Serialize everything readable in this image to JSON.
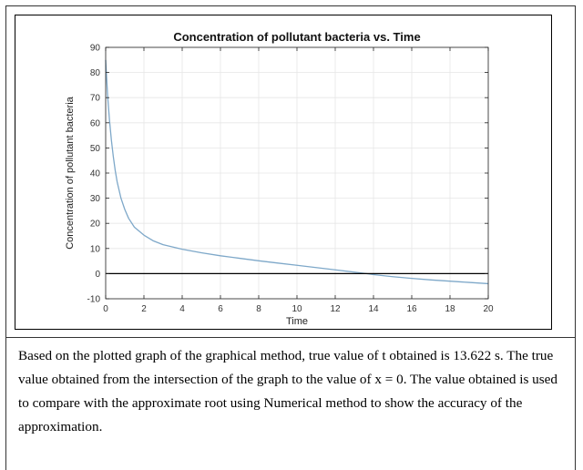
{
  "chart_data": {
    "type": "line",
    "title": "Concentration of pollutant bacteria vs. Time",
    "xlabel": "Time",
    "ylabel": "Concentration of pollutant bacteria",
    "xlim": [
      0,
      20
    ],
    "ylim": [
      -10,
      90
    ],
    "xticks": [
      0,
      2,
      4,
      6,
      8,
      10,
      12,
      14,
      16,
      18,
      20
    ],
    "yticks": [
      -10,
      0,
      10,
      20,
      30,
      40,
      50,
      60,
      70,
      80,
      90
    ],
    "grid": true,
    "series": [
      {
        "name": "concentration",
        "color": "#7ea8c9",
        "x": [
          0,
          0.1,
          0.2,
          0.3,
          0.4,
          0.5,
          0.6,
          0.8,
          1.0,
          1.2,
          1.5,
          2.0,
          2.5,
          3.0,
          4.0,
          5.0,
          6.0,
          7.0,
          8.0,
          9.0,
          10.0,
          11.0,
          12.0,
          13.0,
          13.622,
          14.0,
          15.0,
          16.0,
          17.0,
          18.0,
          19.0,
          20.0
        ],
        "y": [
          85.0,
          71.0,
          61.0,
          53.0,
          46.5,
          41.0,
          36.5,
          30.0,
          25.5,
          22.0,
          18.5,
          15.3,
          13.0,
          11.5,
          9.7,
          8.3,
          7.1,
          6.1,
          5.1,
          4.2,
          3.3,
          2.4,
          1.5,
          0.6,
          0.0,
          -0.4,
          -1.2,
          -1.9,
          -2.5,
          -3.0,
          -3.5,
          -4.0
        ]
      },
      {
        "name": "zero line",
        "color": "#000000",
        "x": [
          0,
          20
        ],
        "y": [
          0,
          0
        ]
      }
    ]
  },
  "caption": {
    "line1": "Based on the plotted graph of the graphical method, true value of t obtained is 13.622 s. The true",
    "line2": "value obtained from the intersection of the graph to the value of x = 0. The value obtained is used",
    "line3": "to compare with the approximate root using Numerical method to show the accuracy of the",
    "line4": "approximation."
  }
}
